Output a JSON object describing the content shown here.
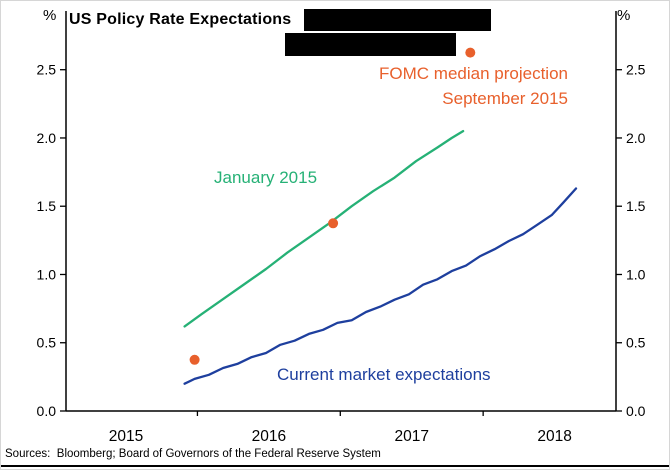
{
  "header": {
    "percent_left": "%",
    "percent_right": "%",
    "title": "US Policy Rate Expectations"
  },
  "annotations": {
    "fomc_line1": "FOMC median projection",
    "fomc_line2": "September 2015",
    "january_label": "January 2015",
    "market_label": "Current market expectations"
  },
  "footer": {
    "sources": "Sources:  Bloomberg; Board of Governors of the Federal Reserve System"
  },
  "colors": {
    "green": "#26b176",
    "blue": "#1e3f9e",
    "orange": "#e8602c",
    "axis": "#000000"
  },
  "chart_data": {
    "type": "line",
    "title": "US Policy Rate Expectations",
    "ylabel": "%",
    "ylim": [
      0.0,
      2.93
    ],
    "xlim": [
      2014.6,
      2018.45
    ],
    "grid": false,
    "yticks": [
      0.0,
      0.5,
      1.0,
      1.5,
      2.0,
      2.5
    ],
    "ytick_labels": [
      "0.0",
      "0.5",
      "1.0",
      "1.5",
      "2.0",
      "2.5"
    ],
    "xtick_positions": [
      2015.02,
      2016.02,
      2017.02,
      2018.02
    ],
    "xtick_labels": [
      "2015",
      "2016",
      "2017",
      "2018"
    ],
    "xminor_ticks": [
      2015.52,
      2016.52,
      2017.52
    ],
    "series": [
      {
        "name": "January 2015",
        "color_key": "green",
        "x": [
          2015.43,
          2015.55,
          2015.7,
          2015.85,
          2016.0,
          2016.15,
          2016.3,
          2016.45,
          2016.6,
          2016.75,
          2016.9,
          2017.05,
          2017.2,
          2017.3,
          2017.38
        ],
        "y": [
          0.62,
          0.71,
          0.82,
          0.93,
          1.04,
          1.16,
          1.27,
          1.38,
          1.5,
          1.61,
          1.71,
          1.83,
          1.93,
          2.0,
          2.05
        ]
      },
      {
        "name": "Current market expectations",
        "color_key": "blue",
        "x": [
          2015.43,
          2015.5,
          2015.6,
          2015.7,
          2015.8,
          2015.9,
          2016.0,
          2016.1,
          2016.2,
          2016.3,
          2016.4,
          2016.5,
          2016.6,
          2016.7,
          2016.8,
          2016.9,
          2017.0,
          2017.1,
          2017.2,
          2017.3,
          2017.4,
          2017.5,
          2017.6,
          2017.7,
          2017.8,
          2017.9,
          2018.0,
          2018.08,
          2018.17
        ],
        "y": [
          0.2,
          0.235,
          0.265,
          0.315,
          0.345,
          0.395,
          0.425,
          0.485,
          0.515,
          0.565,
          0.595,
          0.645,
          0.665,
          0.725,
          0.765,
          0.815,
          0.855,
          0.925,
          0.965,
          1.025,
          1.065,
          1.135,
          1.185,
          1.245,
          1.295,
          1.365,
          1.435,
          1.525,
          1.63
        ]
      }
    ],
    "points": {
      "name": "FOMC median projection September 2015",
      "color_key": "orange",
      "radius": 5,
      "x": [
        2015.5,
        2016.47,
        2017.43
      ],
      "y": [
        0.375,
        1.375,
        2.625
      ]
    }
  }
}
